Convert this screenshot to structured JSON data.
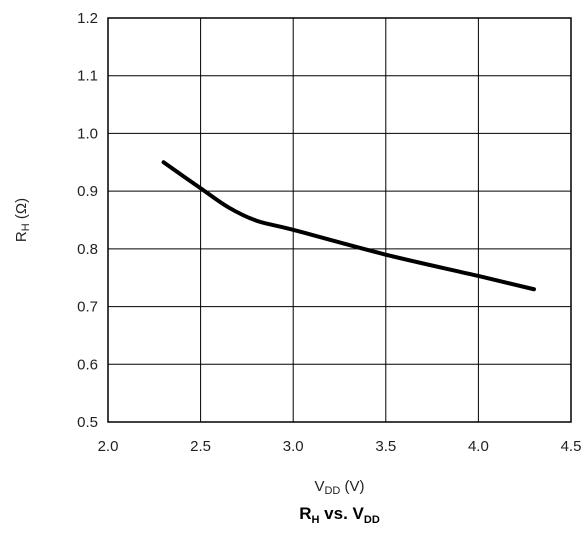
{
  "chart_data": {
    "type": "line",
    "title": {
      "main": "R",
      "main_sub": "H",
      "mid": " vs. V",
      "end_sub": "DD"
    },
    "xlabel": {
      "main": "V",
      "sub": "DD",
      "unit": " (V)"
    },
    "ylabel": {
      "main": "R",
      "sub": "H",
      "unit": " (Ω)"
    },
    "xlim": [
      2.0,
      4.5
    ],
    "ylim": [
      0.5,
      1.2
    ],
    "x_ticks": [
      "2.0",
      "2.5",
      "3.0",
      "3.5",
      "4.0",
      "4.5"
    ],
    "y_ticks": [
      "0.5",
      "0.6",
      "0.7",
      "0.8",
      "0.9",
      "1.0",
      "1.1",
      "1.2"
    ],
    "grid": true,
    "series": [
      {
        "color": "#000000",
        "x": [
          2.3,
          2.5,
          2.65,
          2.8,
          3.0,
          3.5,
          4.0,
          4.3
        ],
        "y": [
          0.95,
          0.905,
          0.872,
          0.849,
          0.833,
          0.79,
          0.753,
          0.73
        ]
      }
    ]
  }
}
